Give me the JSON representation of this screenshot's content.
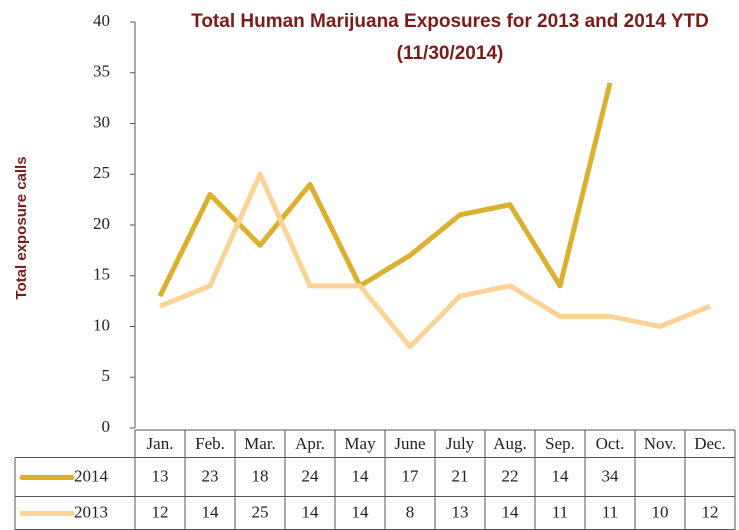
{
  "chart_data": {
    "type": "line",
    "title": "Total Human Marijuana Exposures for 2013 and 2014 YTD (11/30/2014)",
    "y_label": "Total exposure calls",
    "categories": [
      "Jan.",
      "Feb.",
      "Mar.",
      "Apr.",
      "May",
      "June",
      "July",
      "Aug.",
      "Sep.",
      "Oct.",
      "Nov.",
      "Dec."
    ],
    "series": [
      {
        "name": "2014",
        "color": "#dbb02e",
        "values": [
          13,
          23,
          18,
          24,
          14,
          17,
          21,
          22,
          14,
          34,
          null,
          null
        ]
      },
      {
        "name": "2013",
        "color": "#fdd297",
        "values": [
          12,
          14,
          25,
          14,
          14,
          8,
          13,
          14,
          11,
          11,
          10,
          12
        ]
      }
    ],
    "ylim": [
      0,
      40
    ],
    "yticks": [
      0,
      5,
      10,
      15,
      20,
      25,
      30,
      35,
      40
    ],
    "grid": false
  }
}
